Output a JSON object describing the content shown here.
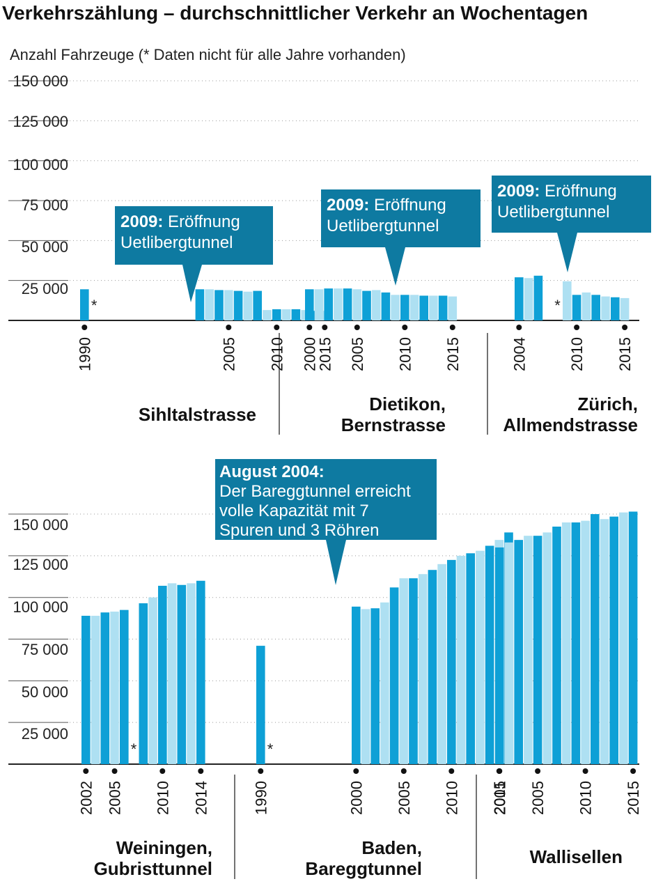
{
  "chart_data": {
    "type": "bar",
    "title": "Verkehrszählung – durchschnittlicher Verkehr an Wochentagen",
    "subtitle": "Anzahl Fahrzeuge (* Daten nicht für alle Jahre vorhanden)",
    "ylim": [
      0,
      150000
    ],
    "yticks": [
      "150 000",
      "125 000",
      "100 000",
      "75 000",
      "50 000",
      "25 000"
    ],
    "colors": {
      "dark": "#0ea0d6",
      "light": "#aee0f2",
      "annotation": "#0e7aa1",
      "axis": "#222222"
    },
    "missing_marker": "*",
    "panels": [
      {
        "name": "Sihltalstrasse",
        "row": 0,
        "missing_year": 1991,
        "year_labels": [
          "1990",
          "2005",
          "2010",
          "2015"
        ],
        "x": [
          1990,
          2002,
          2003,
          2004,
          2005,
          2006,
          2007,
          2008,
          2009,
          2010,
          2011,
          2012,
          2013,
          2014,
          2015
        ],
        "values": [
          19500,
          19500,
          19500,
          19000,
          19000,
          18500,
          18000,
          18500,
          6500,
          7000,
          7000,
          7000,
          6500,
          6000,
          6000
        ],
        "annotation": {
          "bold": "2009:",
          "text": [
            "Eröffnung",
            "Uetlibergtunnel"
          ]
        }
      },
      {
        "name": "Dietikon, Bernstrasse",
        "row": 0,
        "year_labels": [
          "2000",
          "2005",
          "2010",
          "2015"
        ],
        "x": [
          2000,
          2001,
          2002,
          2003,
          2004,
          2005,
          2006,
          2007,
          2008,
          2009,
          2010,
          2011,
          2012,
          2013,
          2014,
          2015
        ],
        "values": [
          19500,
          19500,
          20000,
          20000,
          20000,
          19500,
          18500,
          19000,
          17500,
          16000,
          16000,
          16000,
          15500,
          15500,
          15500,
          15000
        ],
        "annotation": {
          "bold": "2009:",
          "text": [
            "Eröffnung",
            "Uetlibergtunnel"
          ]
        }
      },
      {
        "name": "Zürich, Allmendstrasse",
        "row": 0,
        "missing_year": 2008,
        "year_labels": [
          "2004",
          "2010",
          "2015"
        ],
        "x": [
          2004,
          2005,
          2006,
          2009,
          2010,
          2011,
          2012,
          2013,
          2014,
          2015
        ],
        "values": [
          27000,
          26500,
          28000,
          24500,
          16000,
          17500,
          16000,
          15000,
          14500,
          14000
        ],
        "annotation": {
          "bold": "2009:",
          "text": [
            "Eröffnung",
            "Uetlibergtunnel"
          ]
        }
      },
      {
        "name": "Weiningen, Gubristtunnel",
        "row": 1,
        "missing_year": 2007,
        "year_labels": [
          "2002",
          "2005",
          "2010",
          "2014"
        ],
        "x": [
          2002,
          2003,
          2004,
          2005,
          2006,
          2008,
          2009,
          2010,
          2011,
          2012,
          2013,
          2014
        ],
        "values": [
          89000,
          89000,
          91000,
          91500,
          92500,
          96500,
          100000,
          107000,
          108500,
          107500,
          108500,
          110000
        ]
      },
      {
        "name": "Baden, Bareggtunnel",
        "row": 1,
        "missing_year": 1991,
        "year_labels": [
          "1990",
          "2000",
          "2005",
          "2010",
          "2015"
        ],
        "x": [
          1990,
          2000,
          2001,
          2002,
          2003,
          2004,
          2005,
          2006,
          2007,
          2008,
          2009,
          2010,
          2011,
          2012,
          2013,
          2014,
          2015,
          2016
        ],
        "values": [
          71000,
          94500,
          93000,
          93500,
          97000,
          106000,
          111500,
          111500,
          114000,
          116500,
          120000,
          122500,
          125000,
          126500,
          128000,
          131000,
          134500,
          139000
        ],
        "annotation": {
          "bold": "August 2004:",
          "text": [
            "Der Bareggtunnel erreicht",
            "volle Kapazität mit 7",
            "Spuren und 3 Röhren"
          ]
        }
      },
      {
        "name": "Wallisellen",
        "row": 1,
        "year_labels": [
          "2001",
          "2005",
          "2010",
          "2015"
        ],
        "x": [
          2001,
          2002,
          2003,
          2004,
          2005,
          2006,
          2007,
          2008,
          2009,
          2010,
          2011,
          2012,
          2013,
          2014,
          2015
        ],
        "values": [
          130000,
          133000,
          134500,
          137000,
          137000,
          139000,
          142500,
          145000,
          145000,
          146000,
          150000,
          147000,
          148500,
          151000,
          151500
        ]
      }
    ]
  }
}
